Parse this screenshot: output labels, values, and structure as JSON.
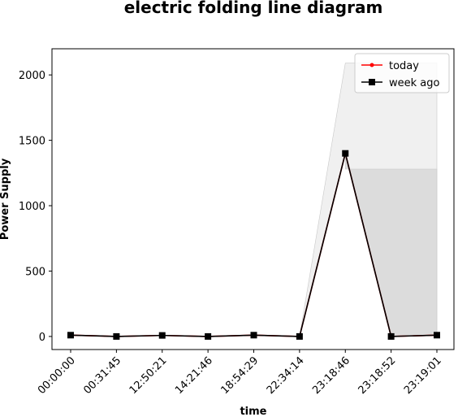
{
  "chart_data": {
    "type": "line",
    "title": "electric folding line diagram",
    "xlabel": "time",
    "ylabel": "Power Supply",
    "categories": [
      "00:00:00",
      "00:31:45",
      "12:50:21",
      "14:21:46",
      "18:54:29",
      "22:34:14",
      "23:18:46",
      "23:18:52",
      "23:19:01"
    ],
    "series": [
      {
        "name": "today",
        "color": "#ff0000",
        "marker": "circle",
        "values": [
          10,
          0,
          8,
          0,
          10,
          0,
          1400,
          0,
          10
        ]
      },
      {
        "name": "week ago",
        "color": "#000000",
        "marker": "square",
        "values": [
          10,
          0,
          8,
          0,
          10,
          0,
          1400,
          0,
          10
        ]
      }
    ],
    "bands": [
      {
        "color": "#eeeeee",
        "upper": [
          null,
          null,
          null,
          null,
          null,
          0,
          2090,
          2090,
          2090
        ]
      },
      {
        "color": "#d9d9d9",
        "upper": [
          null,
          null,
          null,
          null,
          null,
          null,
          1280,
          1280,
          1280
        ]
      }
    ],
    "ylim": [
      -100,
      2200
    ],
    "yticks": [
      0,
      500,
      1000,
      1500,
      2000
    ],
    "legend": "upper right"
  }
}
